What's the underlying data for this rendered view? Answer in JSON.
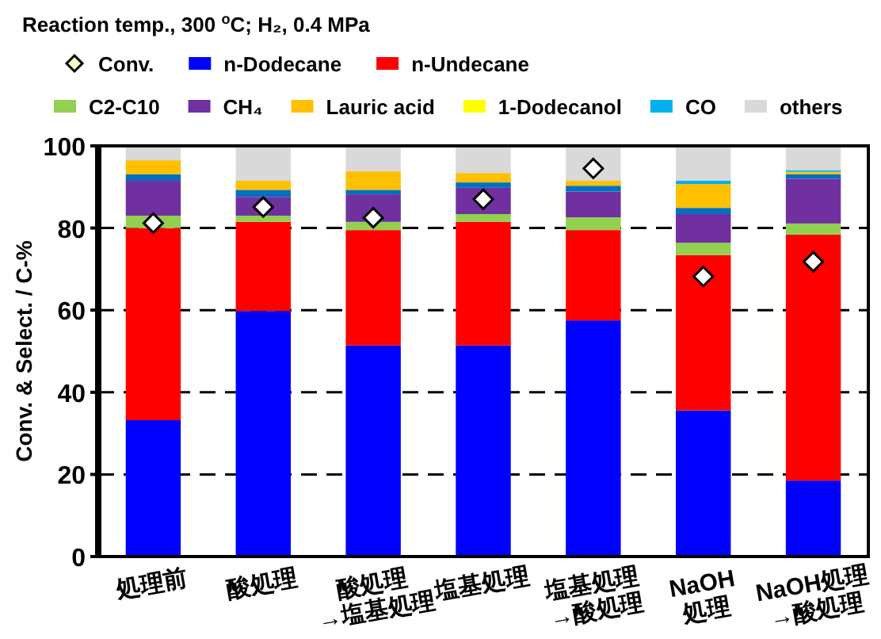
{
  "chart_data": {
    "type": "bar",
    "stacked": true,
    "title": "Reaction temp., 300 $^{o}$C; H₂, 0.4 MPa",
    "ylabel": "Conv. & Select. / C-%",
    "categories": [
      "処理前",
      "酸処理",
      "酸処理\n→塩基処理",
      "塩基処理",
      "塩基処理\n→酸処理",
      "NaOH\n処理",
      "NaOH処理\n→酸処理"
    ],
    "ylim": [
      0,
      100
    ],
    "yticks": [
      0,
      20,
      40,
      60,
      80,
      100
    ],
    "grid": "y",
    "legend": "top",
    "series": [
      {
        "type": "scatter",
        "marker": "diamond",
        "name": "Conv.",
        "color": "#ffffff",
        "values": [
          81.2,
          85.1,
          82.5,
          87.0,
          94.5,
          68.2,
          71.8
        ]
      },
      {
        "name": "n-Dodecane",
        "color": "#0000ff",
        "values": [
          33.2,
          59.8,
          51.4,
          51.4,
          57.5,
          35.6,
          18.5
        ]
      },
      {
        "name": "n-Undecane",
        "color": "#ff0000",
        "values": [
          46.8,
          21.7,
          28.1,
          30.1,
          22.0,
          37.8,
          59.9
        ]
      },
      {
        "name": "C2-C10",
        "color": "#92d050",
        "values": [
          3.0,
          1.5,
          2.0,
          1.9,
          3.1,
          3.0,
          2.7
        ]
      },
      {
        "name": "CH₄",
        "color": "#7030a0",
        "values": [
          8.5,
          4.6,
          6.7,
          6.4,
          6.3,
          7.0,
          10.9
        ]
      },
      {
        "color": "#0070c0",
        "values": [
          1.6,
          1.7,
          1.1,
          1.3,
          1.4,
          1.5,
          1.1
        ]
      },
      {
        "name": "Lauric acid",
        "color": "#ffc000",
        "values": [
          3.4,
          2.2,
          4.5,
          2.3,
          1.2,
          5.8,
          0.6
        ]
      },
      {
        "name": "1-Dodecanol",
        "color": "#ffff00",
        "values": [
          0,
          0,
          0,
          0,
          0,
          0,
          0
        ]
      },
      {
        "name": "CO",
        "color": "#00b0f0",
        "values": [
          0,
          0,
          0,
          0,
          0,
          0.8,
          0.4
        ]
      },
      {
        "name": "others",
        "color": "#d9d9d9",
        "values": [
          3.5,
          8.5,
          6.2,
          6.6,
          8.5,
          8.5,
          5.9
        ]
      }
    ]
  }
}
